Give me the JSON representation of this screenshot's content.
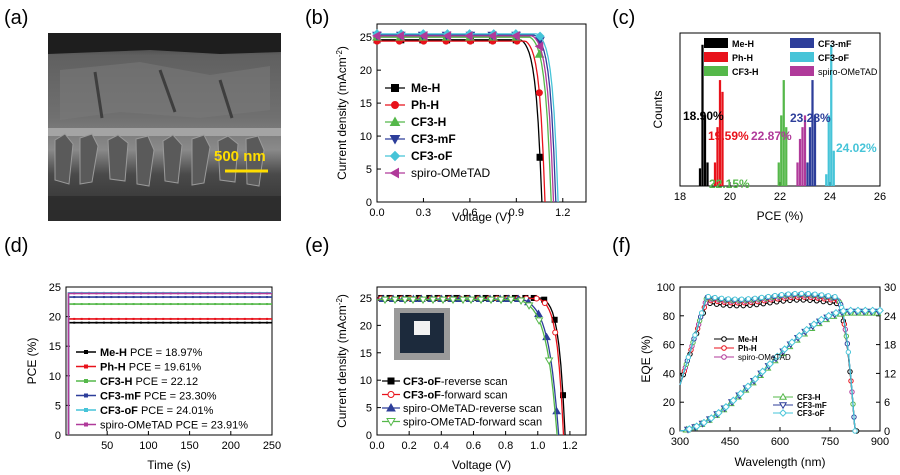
{
  "figure": {
    "panels": {
      "a": {
        "label": "(a)",
        "scale_bar": "500 nm"
      },
      "b": {
        "label": "(b)"
      },
      "c": {
        "label": "(c)"
      },
      "d": {
        "label": "(d)"
      },
      "e": {
        "label": "(e)"
      },
      "f": {
        "label": "(f)"
      }
    }
  },
  "chart_data": [
    {
      "id": "b",
      "type": "line",
      "xlabel": "Voltage (V)",
      "ylabel": "Current density (mAcm",
      "ylabel_sup": "-2",
      "ylabel_end": ")",
      "xlim": [
        0.0,
        1.35
      ],
      "ylim": [
        0,
        27
      ],
      "xticks": [
        "0.0",
        "0.3",
        "0.6",
        "0.9",
        "1.2"
      ],
      "yticks": [
        "0",
        "5",
        "10",
        "15",
        "20",
        "25"
      ],
      "series": [
        {
          "name": "Me-H",
          "color": "#000000",
          "marker": "square",
          "jsc": 24.6,
          "voc": 1.065,
          "vk": 0.93,
          "k": 0.035
        },
        {
          "name": "Ph-H",
          "color": "#e8121b",
          "marker": "circle",
          "jsc": 24.4,
          "voc": 1.085,
          "vk": 0.96,
          "k": 0.032
        },
        {
          "name": "CF3-H",
          "color": "#55b84a",
          "marker": "triangle-up",
          "jsc": 25.0,
          "voc": 1.125,
          "vk": 0.99,
          "k": 0.035
        },
        {
          "name": "CF3-mF",
          "color": "#2d3e9a",
          "marker": "triangle-down",
          "jsc": 25.3,
          "voc": 1.155,
          "vk": 1.02,
          "k": 0.034
        },
        {
          "name": "CF3-oF",
          "color": "#46c4d8",
          "marker": "diamond",
          "jsc": 25.5,
          "voc": 1.17,
          "vk": 1.035,
          "k": 0.034
        },
        {
          "name": "spiro-OMeTAD",
          "color": "#b03a9a",
          "marker": "triangle-left",
          "jsc": 25.2,
          "voc": 1.14,
          "vk": 1.005,
          "k": 0.035
        }
      ]
    },
    {
      "id": "c",
      "type": "bar",
      "xlabel": "PCE (%)",
      "ylabel": "Counts",
      "xlim": [
        18,
        26
      ],
      "xticks": [
        "18",
        "20",
        "22",
        "24",
        "26"
      ],
      "series": [
        {
          "name": "Me-H",
          "color": "#000000",
          "values": [
            [
              18.8,
              1.5
            ],
            [
              18.9,
              12
            ],
            [
              19.0,
              6
            ],
            [
              19.1,
              2
            ]
          ],
          "label": "18.90%",
          "label_color": "#000000"
        },
        {
          "name": "Ph-H",
          "color": "#e8121b",
          "values": [
            [
              19.4,
              2
            ],
            [
              19.5,
              5
            ],
            [
              19.6,
              9
            ],
            [
              19.7,
              8
            ]
          ],
          "label": "19.59%",
          "label_color": "#e8121b"
        },
        {
          "name": "CF3-H",
          "color": "#55b84a",
          "values": [
            [
              21.95,
              2
            ],
            [
              22.05,
              6
            ],
            [
              22.15,
              9
            ],
            [
              22.25,
              5
            ]
          ],
          "label": "22.15%",
          "label_color": "#55b84a"
        },
        {
          "name": "CF3-mF",
          "color": "#2d3e9a",
          "values": [
            [
              23.1,
              2
            ],
            [
              23.2,
              5
            ],
            [
              23.3,
              9
            ],
            [
              23.4,
              6
            ]
          ],
          "label": "23.28%",
          "label_color": "#2d3e9a"
        },
        {
          "name": "CF3-oF",
          "color": "#46c4d8",
          "values": [
            [
              23.85,
              1
            ],
            [
              23.95,
              6
            ],
            [
              24.05,
              12
            ],
            [
              24.15,
              3
            ]
          ],
          "label": "24.02%",
          "label_color": "#46c4d8"
        },
        {
          "name": "spiro-OMeTAD",
          "color": "#b03a9a",
          "values": [
            [
              22.7,
              2
            ],
            [
              22.8,
              4
            ],
            [
              22.9,
              5
            ],
            [
              23.0,
              6
            ]
          ],
          "label": "22.87%",
          "label_color": "#b03a9a"
        }
      ]
    },
    {
      "id": "d",
      "type": "line",
      "xlabel": "Time (s)",
      "ylabel": "PCE (%)",
      "xlim": [
        0,
        250
      ],
      "ylim": [
        0,
        25
      ],
      "xticks": [
        "50",
        "100",
        "150",
        "200",
        "250"
      ],
      "yticks": [
        "0",
        "5",
        "10",
        "15",
        "20",
        "25"
      ],
      "series": [
        {
          "name": "Me-H",
          "legend": "Me-H PCE = 18.97%",
          "color": "#000000",
          "value": 18.97
        },
        {
          "name": "Ph-H",
          "legend": "Ph-H PCE = 19.61%",
          "color": "#e8121b",
          "value": 19.61
        },
        {
          "name": "CF3-H",
          "legend": "CF3-H PCE = 22.12",
          "color": "#55b84a",
          "value": 22.12
        },
        {
          "name": "CF3-mF",
          "legend": "CF3-mF PCE = 23.30%",
          "color": "#2d3e9a",
          "value": 23.3
        },
        {
          "name": "CF3-oF",
          "legend": "CF3-oF PCE = 24.01%",
          "color": "#46c4d8",
          "value": 24.01
        },
        {
          "name": "spiro-OMeTAD",
          "legend": "spiro-OMeTAD PCE = 23.91%",
          "color": "#b03a9a",
          "value": 23.91
        }
      ]
    },
    {
      "id": "e",
      "type": "line",
      "xlabel": "Voltage (V)",
      "ylabel": "Current density (mAcm",
      "ylabel_sup": "-2",
      "ylabel_end": ")",
      "xlim": [
        0.0,
        1.3
      ],
      "ylim": [
        0,
        27
      ],
      "xticks": [
        "0.0",
        "0.2",
        "0.4",
        "0.6",
        "0.8",
        "1.0",
        "1.2"
      ],
      "yticks": [
        "0",
        "5",
        "10",
        "15",
        "20",
        "25"
      ],
      "series": [
        {
          "name": "CF3-oF-reverse scan",
          "bold": "CF3-oF",
          "rest": "-reverse scan",
          "color": "#000000",
          "marker": "square",
          "filled": true,
          "jsc": 25.0,
          "voc": 1.17,
          "vk": 1.02,
          "k": 0.036
        },
        {
          "name": "CF3-oF-forward scan",
          "bold": "CF3-oF",
          "rest": "-forward scan",
          "color": "#e8121b",
          "marker": "circle",
          "filled": false,
          "jsc": 24.9,
          "voc": 1.16,
          "vk": 1.0,
          "k": 0.037
        },
        {
          "name": "spiro-OMeTAD-reverse scan",
          "bold": "",
          "rest": "spiro-OMeTAD-reverse scan",
          "color": "#2d3e9a",
          "marker": "triangle-up",
          "filled": true,
          "jsc": 24.8,
          "voc": 1.13,
          "vk": 0.9,
          "k": 0.06
        },
        {
          "name": "spiro-OMeTAD-forward scan",
          "bold": "",
          "rest": "spiro-OMeTAD-forward scan",
          "color": "#55b84a",
          "marker": "triangle-down",
          "filled": false,
          "jsc": 24.7,
          "voc": 1.12,
          "vk": 0.88,
          "k": 0.062
        }
      ]
    },
    {
      "id": "f",
      "type": "line",
      "xlabel": "Wavelength (nm)",
      "ylabel": "EQE (%)",
      "xlim": [
        300,
        900
      ],
      "ylim": [
        0,
        100
      ],
      "y2lim": [
        0,
        30
      ],
      "xticks": [
        "300",
        "450",
        "600",
        "750",
        "900"
      ],
      "yticks": [
        "0",
        "20",
        "40",
        "60",
        "80",
        "100"
      ],
      "y2ticks": [
        "0",
        "6",
        "12",
        "18",
        "24",
        "30"
      ],
      "eqe_series": [
        {
          "name": "Me-H",
          "color": "#000000",
          "plateau": 89
        },
        {
          "name": "Ph-H",
          "color": "#e8121b",
          "plateau": 91
        },
        {
          "name": "spiro-OMeTAD",
          "color": "#b03a9a",
          "plateau": 92
        },
        {
          "name": "CF3-H",
          "color": "#55b84a",
          "plateau": 92.5
        },
        {
          "name": "CF3-mF",
          "color": "#2d3e9a",
          "plateau": 93
        },
        {
          "name": "CF3-oF",
          "color": "#46c4d8",
          "plateau": 93.5
        }
      ],
      "integrated_jsc": [
        {
          "name": "CF3-H",
          "color": "#55b84a",
          "final": 24.6
        },
        {
          "name": "CF3-mF",
          "color": "#2d3e9a",
          "final": 24.9
        },
        {
          "name": "CF3-oF",
          "color": "#46c4d8",
          "final": 25.1
        }
      ],
      "legend_top": [
        "Me-H",
        "Ph-H",
        "spiro-OMeTAD"
      ],
      "legend_bottom": [
        "CF3-H",
        "CF3-mF",
        "CF3-oF"
      ]
    }
  ]
}
